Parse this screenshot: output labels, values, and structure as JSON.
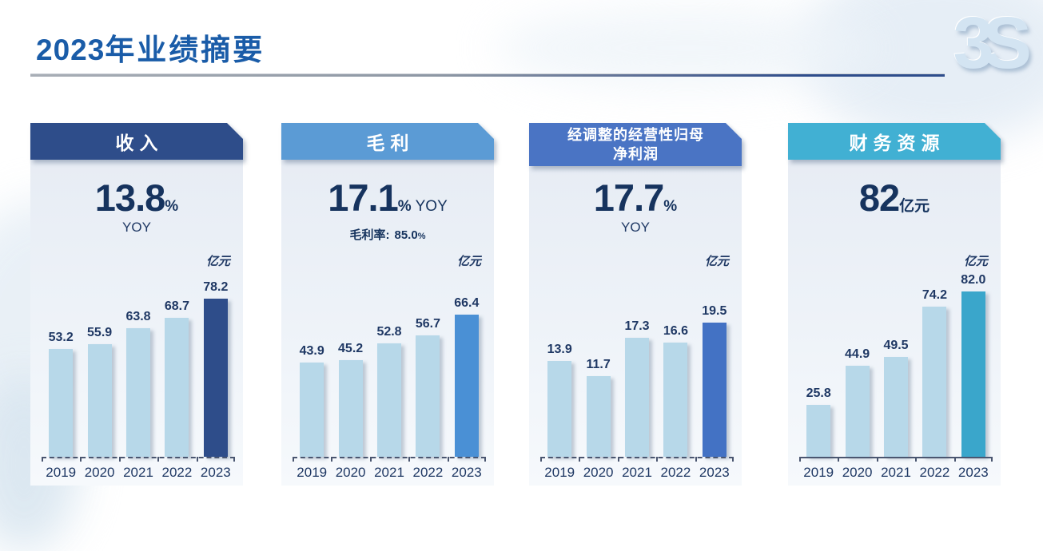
{
  "page": {
    "title": {
      "year": "2023",
      "rest": "年业绩摘要"
    },
    "logo_text": "3S"
  },
  "cards": [
    {
      "header": "收入",
      "accent": "#2E4D8A",
      "stat": {
        "value": "13.8",
        "suffix": "%",
        "inline": "",
        "below": "YOY"
      }
    },
    {
      "header": "毛利",
      "accent": "#5B9BD5",
      "stat": {
        "value": "17.1",
        "suffix": "%",
        "inline": "YOY",
        "below": ""
      },
      "extra": {
        "label": "毛利率:",
        "value": "85.0",
        "suffix": "%"
      }
    },
    {
      "header": "经调整的经营性归母净利润",
      "header_lines": [
        "经调整的经营性归母",
        "净利润"
      ],
      "accent": "#4A74C4",
      "stat": {
        "value": "17.7",
        "suffix": "%",
        "inline": "",
        "below": "YOY"
      }
    },
    {
      "header": "财务资源",
      "accent": "#41B0D3",
      "stat": {
        "value": "82",
        "suffix": "亿元",
        "inline": "",
        "below": ""
      }
    }
  ],
  "chart_data": [
    {
      "type": "bar",
      "title": "收入",
      "unit": "亿元",
      "categories": [
        "2019",
        "2020",
        "2021",
        "2022",
        "2023"
      ],
      "values": [
        53.2,
        55.9,
        63.8,
        68.7,
        78.2
      ],
      "labels": [
        "53.2",
        "55.9",
        "63.8",
        "68.7",
        "78.2"
      ],
      "ylim": [
        0,
        85
      ],
      "bar_color": "#B7D8E9",
      "highlight_index": 4,
      "highlight_color": "#2E4D8A",
      "axis_style": "dashed",
      "grid": false,
      "legend": false
    },
    {
      "type": "bar",
      "title": "毛利",
      "unit": "亿元",
      "categories": [
        "2019",
        "2020",
        "2021",
        "2022",
        "2023"
      ],
      "values": [
        43.9,
        45.2,
        52.8,
        56.7,
        66.4
      ],
      "labels": [
        "43.9",
        "45.2",
        "52.8",
        "56.7",
        "66.4"
      ],
      "ylim": [
        0,
        80
      ],
      "bar_color": "#B7D8E9",
      "highlight_index": 4,
      "highlight_color": "#4A90D5",
      "axis_style": "dashed",
      "grid": false,
      "legend": false
    },
    {
      "type": "bar",
      "title": "经调整的经营性归母净利润",
      "unit": "亿元",
      "categories": [
        "2019",
        "2020",
        "2021",
        "2022",
        "2023"
      ],
      "values": [
        13.9,
        11.7,
        17.3,
        16.6,
        19.5
      ],
      "labels": [
        "13.9",
        "11.7",
        "17.3",
        "16.6",
        "19.5"
      ],
      "ylim": [
        0,
        25
      ],
      "bar_color": "#B7D8E9",
      "highlight_index": 4,
      "highlight_color": "#4372C4",
      "axis_style": "dashed",
      "grid": false,
      "legend": false
    },
    {
      "type": "bar",
      "title": "财务资源",
      "unit": "亿元",
      "categories": [
        "2019",
        "2020",
        "2021",
        "2022",
        "2023"
      ],
      "values": [
        25.8,
        44.9,
        49.5,
        74.2,
        82.0
      ],
      "labels": [
        "25.8",
        "44.9",
        "49.5",
        "74.2",
        "82.0"
      ],
      "ylim": [
        0,
        85
      ],
      "bar_color": "#B7D8E9",
      "highlight_index": 4,
      "highlight_color": "#3AA6CB",
      "axis_style": "solid",
      "grid": false,
      "legend": false
    }
  ]
}
